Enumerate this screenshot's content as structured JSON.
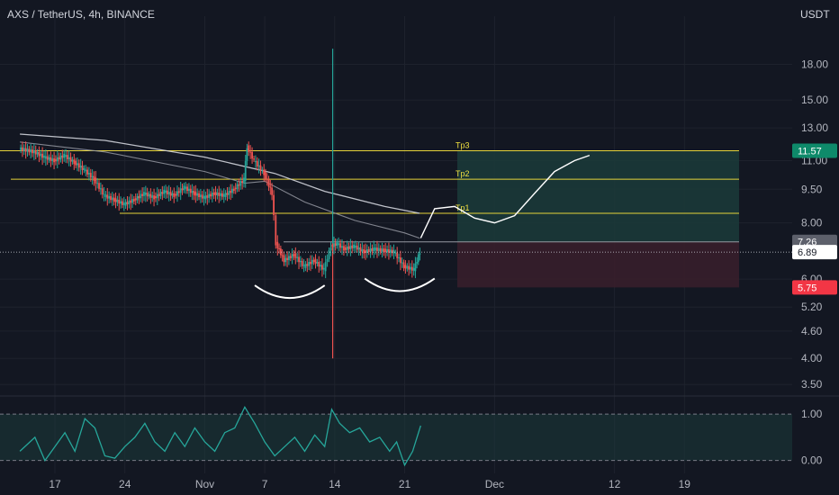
{
  "header": {
    "symbol": "AXS / TetherUS, 4h, BINANCE",
    "currency": "USDT"
  },
  "colors": {
    "background": "#131722",
    "grid": "#1e222d",
    "candle_up": "#26a69a",
    "candle_down": "#ef5350",
    "target_level": "#e5d33a",
    "ma": "#b2b5be",
    "profit_zone": "#1b3b3a",
    "loss_zone": "#3a1f2b",
    "badge_tp": "#0e8a6a",
    "badge_price": "#ffffff",
    "badge_stop": "#f23645",
    "badge_entry": "#5d606b"
  },
  "chart_data": {
    "type": "candlestick",
    "scale": "log",
    "ylim": [
      3.3,
      21
    ],
    "price_ticks": [
      18.0,
      15.0,
      13.0,
      11.0,
      9.5,
      8.0,
      6.0,
      5.2,
      4.6,
      4.0,
      3.5
    ],
    "date_ticks": [
      "17",
      "24",
      "Nov",
      "7",
      "14",
      "21",
      "Dec",
      "12",
      "19"
    ],
    "date_tick_day_index": [
      0,
      7,
      15,
      21,
      28,
      35,
      44,
      56,
      63
    ],
    "last_price": "6.89",
    "levels": [
      {
        "label": "Tp3",
        "price": 11.57
      },
      {
        "label": "Tp2",
        "price": 10.0
      },
      {
        "label": "Tp1",
        "price": 8.4
      }
    ],
    "position": {
      "entry": 7.26,
      "take_profit": 11.57,
      "stop_loss": 5.75
    },
    "badges": {
      "take_profit": "11.57",
      "entry": "7.26",
      "stop_loss": "5.75"
    },
    "ohlc_path_day_price": [
      [
        -3.5,
        11.7
      ],
      [
        -2,
        11.5
      ],
      [
        -1,
        11.2
      ],
      [
        0,
        11.0
      ],
      [
        1,
        11.3
      ],
      [
        2,
        10.9
      ],
      [
        3,
        10.5
      ],
      [
        4,
        10.0
      ],
      [
        5,
        9.2
      ],
      [
        6,
        9.0
      ],
      [
        7,
        8.8
      ],
      [
        8,
        9.0
      ],
      [
        9,
        9.3
      ],
      [
        10,
        9.1
      ],
      [
        11,
        9.4
      ],
      [
        12,
        9.2
      ],
      [
        13,
        9.6
      ],
      [
        14,
        9.3
      ],
      [
        15,
        9.1
      ],
      [
        16,
        9.3
      ],
      [
        17,
        9.2
      ],
      [
        18,
        9.5
      ],
      [
        19,
        10.0
      ],
      [
        19.3,
        11.8
      ],
      [
        20,
        11.0
      ],
      [
        21,
        10.3
      ],
      [
        21.8,
        9.3
      ],
      [
        22.2,
        7.2
      ],
      [
        23,
        6.6
      ],
      [
        24,
        6.8
      ],
      [
        25,
        6.4
      ],
      [
        26,
        6.6
      ],
      [
        27,
        6.3
      ],
      [
        27.7,
        7.1
      ],
      [
        28.3,
        7.2
      ],
      [
        29,
        7.0
      ],
      [
        30,
        7.1
      ],
      [
        31,
        6.9
      ],
      [
        32,
        7.0
      ],
      [
        33,
        6.95
      ],
      [
        34,
        6.9
      ],
      [
        35,
        6.4
      ],
      [
        36,
        6.3
      ],
      [
        36.6,
        6.9
      ]
    ],
    "spike": {
      "day": 27.8,
      "low": 4.0,
      "high": 19.5
    },
    "ma_slow": [
      [
        -3.5,
        12.6
      ],
      [
        5,
        12.2
      ],
      [
        15,
        11.2
      ],
      [
        22,
        10.3
      ],
      [
        27,
        9.4
      ],
      [
        33,
        8.7
      ],
      [
        36.5,
        8.4
      ]
    ],
    "ma_fast": [
      [
        -3.5,
        12.1
      ],
      [
        5,
        11.5
      ],
      [
        15,
        10.4
      ],
      [
        19,
        9.8
      ],
      [
        21,
        9.9
      ],
      [
        25,
        8.9
      ],
      [
        30,
        8.1
      ],
      [
        35,
        7.6
      ],
      [
        36.5,
        7.4
      ]
    ],
    "projection_path": [
      [
        36.6,
        7.4
      ],
      [
        38,
        8.6
      ],
      [
        40,
        8.7
      ],
      [
        42,
        8.2
      ],
      [
        44,
        8.0
      ],
      [
        46,
        8.3
      ],
      [
        48,
        9.3
      ],
      [
        50,
        10.4
      ],
      [
        52,
        11.0
      ],
      [
        53.5,
        11.3
      ]
    ],
    "pattern_arcs": [
      {
        "from_day": 20,
        "to_day": 27,
        "price": 5.6
      },
      {
        "from_day": 31,
        "to_day": 38,
        "price": 5.8
      }
    ],
    "indicator": {
      "ticks": [
        1.0,
        0.0
      ],
      "ylim": [
        -0.2,
        1.35
      ],
      "series": [
        [
          -3.5,
          0.2
        ],
        [
          -2,
          0.5
        ],
        [
          -1,
          0.0
        ],
        [
          0,
          0.3
        ],
        [
          1,
          0.6
        ],
        [
          2,
          0.2
        ],
        [
          3,
          0.9
        ],
        [
          4,
          0.7
        ],
        [
          5,
          0.1
        ],
        [
          6,
          0.05
        ],
        [
          7,
          0.3
        ],
        [
          8,
          0.5
        ],
        [
          9,
          0.8
        ],
        [
          10,
          0.4
        ],
        [
          11,
          0.2
        ],
        [
          12,
          0.6
        ],
        [
          13,
          0.3
        ],
        [
          14,
          0.7
        ],
        [
          15,
          0.4
        ],
        [
          16,
          0.2
        ],
        [
          17,
          0.6
        ],
        [
          18,
          0.7
        ],
        [
          19,
          1.15
        ],
        [
          20,
          0.8
        ],
        [
          21,
          0.4
        ],
        [
          22,
          0.1
        ],
        [
          23,
          0.3
        ],
        [
          24,
          0.5
        ],
        [
          25,
          0.2
        ],
        [
          26,
          0.55
        ],
        [
          27,
          0.3
        ],
        [
          27.7,
          1.1
        ],
        [
          28.5,
          0.8
        ],
        [
          29.5,
          0.6
        ],
        [
          30.5,
          0.7
        ],
        [
          31.5,
          0.4
        ],
        [
          32.5,
          0.5
        ],
        [
          33.5,
          0.2
        ],
        [
          34.2,
          0.4
        ],
        [
          35,
          -0.1
        ],
        [
          35.8,
          0.2
        ],
        [
          36.6,
          0.75
        ]
      ]
    }
  }
}
